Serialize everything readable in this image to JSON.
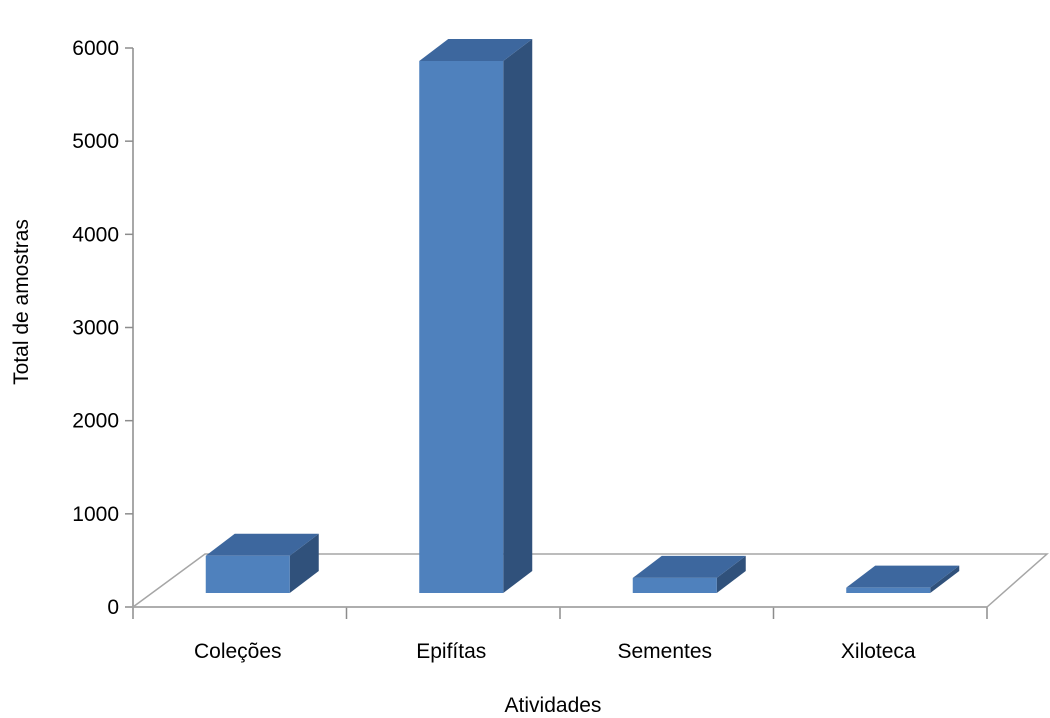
{
  "chart_data": {
    "type": "bar",
    "title": "",
    "xlabel": "Atividades",
    "ylabel": "Total de amostras",
    "categories": [
      "Coleções",
      "Epifítas",
      "Sementes",
      "Xiloteca"
    ],
    "values": [
      420,
      6000,
      170,
      60
    ],
    "ylim": [
      0,
      6000
    ],
    "yticks": [
      "0",
      "1000",
      "2000",
      "3000",
      "4000",
      "5000",
      "6000"
    ],
    "grid": false,
    "legend": "none",
    "colors": {
      "bar_front": "#4f81bd",
      "bar_top": "#3d679e",
      "bar_side": "#30517b",
      "axis": "#8c8c8c",
      "floor": "#a6a6a6"
    }
  }
}
